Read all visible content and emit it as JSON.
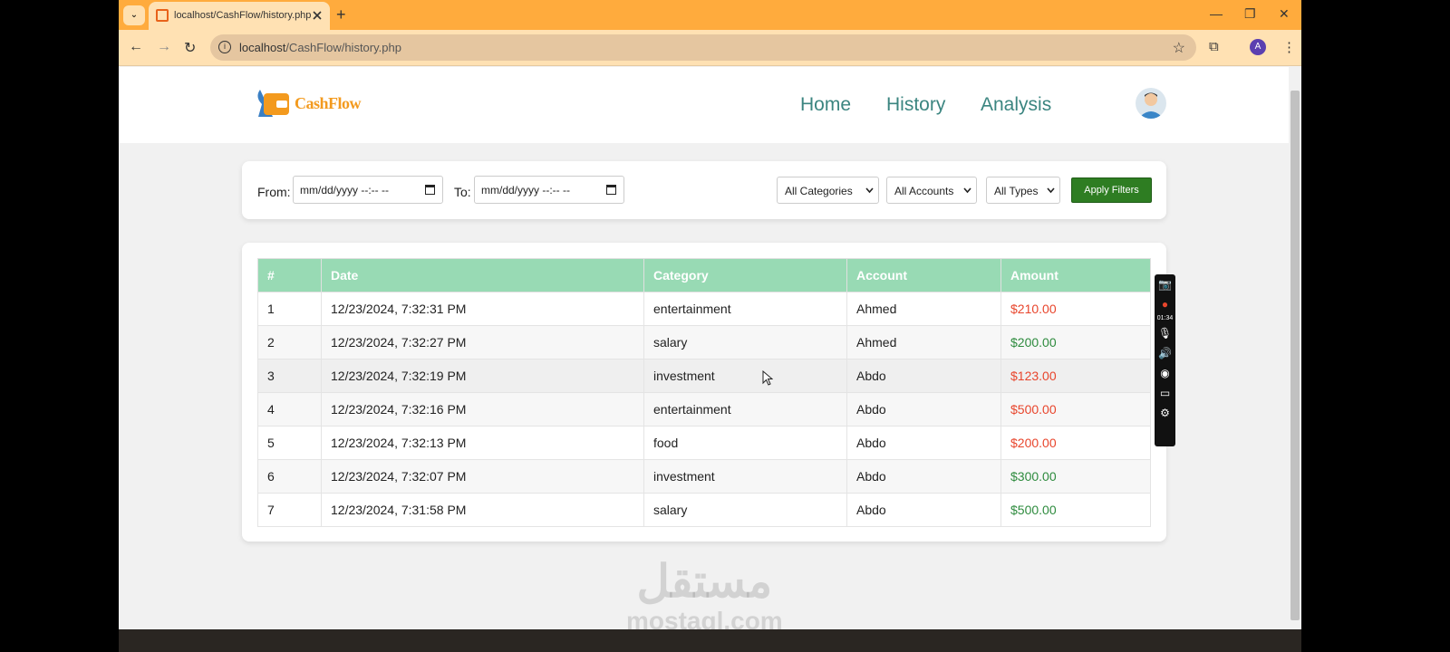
{
  "browser": {
    "tab_title": "localhost/CashFlow/history.php",
    "url_host": "localhost",
    "url_path": "/CashFlow/history.php",
    "profile_initial": "A"
  },
  "header": {
    "logo_text": "CashFlow",
    "nav": [
      "Home",
      "History",
      "Analysis"
    ]
  },
  "filters": {
    "from_label": "From:",
    "to_label": "To:",
    "from_placeholder": "mm/dd/yyyy --:-- --",
    "to_placeholder": "mm/dd/yyyy --:-- --",
    "category": "All Categories",
    "account": "All Accounts",
    "type": "All Types",
    "apply_label": "Apply Filters"
  },
  "table": {
    "headers": [
      "#",
      "Date",
      "Category",
      "Account",
      "Amount"
    ],
    "rows": [
      {
        "n": "1",
        "date": "12/23/2024, 7:32:31 PM",
        "category": "entertainment",
        "account": "Ahmed",
        "amount": "$210.00",
        "type": "expense"
      },
      {
        "n": "2",
        "date": "12/23/2024, 7:32:27 PM",
        "category": "salary",
        "account": "Ahmed",
        "amount": "$200.00",
        "type": "income"
      },
      {
        "n": "3",
        "date": "12/23/2024, 7:32:19 PM",
        "category": "investment",
        "account": "Abdo",
        "amount": "$123.00",
        "type": "expense"
      },
      {
        "n": "4",
        "date": "12/23/2024, 7:32:16 PM",
        "category": "entertainment",
        "account": "Abdo",
        "amount": "$500.00",
        "type": "expense"
      },
      {
        "n": "5",
        "date": "12/23/2024, 7:32:13 PM",
        "category": "food",
        "account": "Abdo",
        "amount": "$200.00",
        "type": "expense"
      },
      {
        "n": "6",
        "date": "12/23/2024, 7:32:07 PM",
        "category": "investment",
        "account": "Abdo",
        "amount": "$300.00",
        "type": "income"
      },
      {
        "n": "7",
        "date": "12/23/2024, 7:31:58 PM",
        "category": "salary",
        "account": "Abdo",
        "amount": "$500.00",
        "type": "income"
      }
    ]
  },
  "recorder": {
    "timer": "01:34"
  },
  "watermark": {
    "arabic": "مستقل",
    "latin": "mostaql.com"
  },
  "colors": {
    "expense": "#e8452c",
    "income": "#2e8b3e",
    "header": "#98dab4",
    "accent": "#2e7d22",
    "browser": "#ffab3d"
  }
}
